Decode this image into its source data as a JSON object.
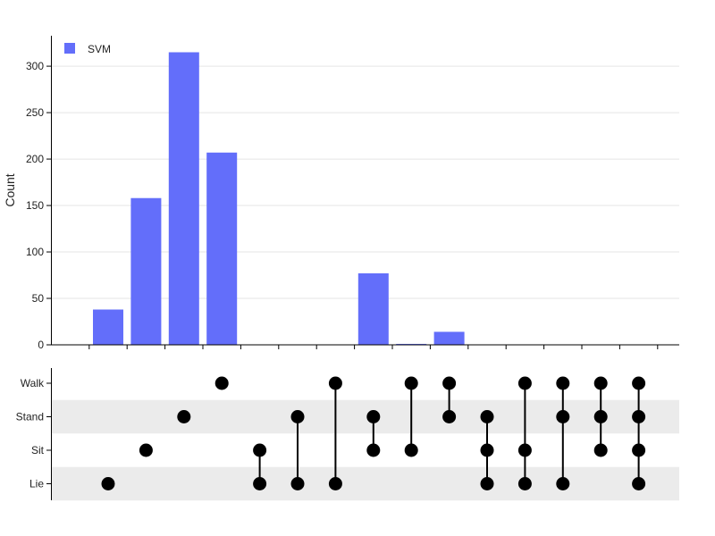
{
  "chart_data": [
    {
      "type": "bar",
      "title": "",
      "xlabel": "",
      "ylabel": "Count",
      "ylim": [
        0,
        330
      ],
      "yticks": [
        0,
        50,
        100,
        150,
        200,
        250,
        300
      ],
      "grid": true,
      "legend_position": "top-left",
      "series": [
        {
          "name": "SVM",
          "color": "#636efa",
          "values": [
            38,
            158,
            315,
            207,
            0,
            0,
            0,
            77,
            1,
            14,
            0,
            0,
            0,
            0,
            0
          ]
        }
      ]
    },
    {
      "type": "matrix",
      "rows": [
        "Walk",
        "Stand",
        "Sit",
        "Lie"
      ],
      "combinations": [
        [
          "Lie"
        ],
        [
          "Sit"
        ],
        [
          "Stand"
        ],
        [
          "Walk"
        ],
        [
          "Sit",
          "Lie"
        ],
        [
          "Stand",
          "Lie"
        ],
        [
          "Walk",
          "Lie"
        ],
        [
          "Stand",
          "Sit"
        ],
        [
          "Walk",
          "Sit"
        ],
        [
          "Walk",
          "Stand"
        ],
        [
          "Stand",
          "Sit",
          "Lie"
        ],
        [
          "Walk",
          "Sit",
          "Lie"
        ],
        [
          "Walk",
          "Stand",
          "Lie"
        ],
        [
          "Walk",
          "Stand",
          "Sit"
        ],
        [
          "Walk",
          "Stand",
          "Sit",
          "Lie"
        ]
      ]
    }
  ]
}
